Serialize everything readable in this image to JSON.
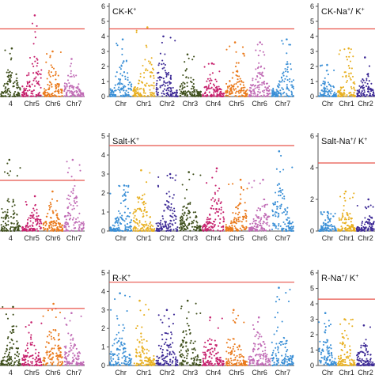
{
  "colors": {
    "chr_cycle": [
      "#3a8fd6",
      "#e8b022",
      "#3d2a96",
      "#3f4f1c",
      "#c7226e",
      "#ea7a1c",
      "#c16db6"
    ],
    "threshold": "#e8534a",
    "axis": "#555555"
  },
  "chart_data": [
    {
      "id": "left-top",
      "type": "scatter",
      "title": "",
      "chromosomes": [
        "4",
        "Chr5",
        "Chr6",
        "Chr7"
      ],
      "threshold": 4.5,
      "ylim": [
        0,
        6
      ],
      "peaks": [
        3.2,
        5.4,
        3.0,
        2.5
      ],
      "ytick_values": []
    },
    {
      "id": "middle-top",
      "type": "scatter",
      "title": "CK-K",
      "title_superscript": "+",
      "chromosomes": [
        "Chr",
        "Chr1",
        "Chr2",
        "Chr3",
        "Chr4",
        "Chr5",
        "Chr6",
        "Chr7"
      ],
      "threshold": 4.5,
      "ylim": [
        0,
        6
      ],
      "peaks": [
        3.8,
        4.6,
        4.0,
        2.8,
        2.2,
        3.6,
        3.6,
        3.8
      ],
      "ytick_values": [
        "0",
        "1",
        "2",
        "3",
        "4",
        "5",
        "6"
      ]
    },
    {
      "id": "right-top",
      "type": "scatter",
      "title": "CK-Na",
      "title_superscript": "+",
      "title_suffix": "/ K",
      "title_suffix_superscript": "+",
      "chromosomes": [
        "Chr",
        "Chr1",
        "Chr2"
      ],
      "threshold": 4.5,
      "ylim": [
        0,
        6
      ],
      "peaks": [
        2.1,
        3.2,
        2.6
      ],
      "ytick_values": [
        "0",
        "1",
        "2",
        "3",
        "4",
        "5",
        "6"
      ]
    },
    {
      "id": "left-middle",
      "type": "scatter",
      "title": "",
      "chromosomes": [
        "4",
        "Chr5",
        "Chr6",
        "Chr7"
      ],
      "threshold": 3.2,
      "ylim": [
        0,
        6
      ],
      "peaks": [
        4.5,
        2.2,
        2.5,
        4.5
      ],
      "ytick_values": []
    },
    {
      "id": "middle-middle",
      "type": "scatter",
      "title": "Salt-K",
      "title_superscript": "+",
      "chromosomes": [
        "Chr",
        "Chr1",
        "Chr2",
        "Chr3",
        "Chr4",
        "Chr5",
        "Chr6",
        "Chr7"
      ],
      "threshold": 4.5,
      "ylim": [
        0,
        5
      ],
      "peaks": [
        2.4,
        3.2,
        3.0,
        3.1,
        3.3,
        2.7,
        2.7,
        4.2
      ],
      "ytick_values": [
        "0",
        "1",
        "2",
        "3",
        "4",
        "5"
      ]
    },
    {
      "id": "right-middle",
      "type": "scatter",
      "title": "Salt-Na",
      "title_superscript": "+",
      "title_suffix": "/ K",
      "title_suffix_superscript": "+",
      "chromosomes": [
        "Chr",
        "Chr1",
        "Chr2"
      ],
      "threshold": 4.3,
      "ylim": [
        0,
        6
      ],
      "peaks": [
        1.2,
        2.5,
        2.0
      ],
      "ytick_values": [
        "0",
        "2",
        "4",
        "6"
      ]
    },
    {
      "id": "left-bottom",
      "type": "scatter",
      "title": "",
      "chromosomes": [
        "4",
        "Chr5",
        "Chr6",
        "Chr7"
      ],
      "threshold": 3.7,
      "ylim": [
        0,
        6
      ],
      "peaks": [
        3.8,
        2.8,
        4.0,
        3.4
      ],
      "ytick_values": []
    },
    {
      "id": "middle-bottom",
      "type": "scatter",
      "title": "R-K",
      "title_superscript": "+",
      "chromosomes": [
        "Chr",
        "Chr1",
        "Chr2",
        "Chr3",
        "Chr4",
        "Chr5",
        "Chr6",
        "Chr7"
      ],
      "threshold": 4.5,
      "ylim": [
        0,
        5
      ],
      "peaks": [
        3.9,
        3.5,
        3.0,
        3.5,
        2.6,
        3.0,
        2.6,
        4.2
      ],
      "ytick_values": [
        "0",
        "1",
        "2",
        "3",
        "4",
        "5"
      ]
    },
    {
      "id": "right-bottom",
      "type": "scatter",
      "title": "R-Na",
      "title_superscript": "+",
      "title_suffix": "/ K",
      "title_suffix_superscript": "+",
      "chromosomes": [
        "Chr",
        "Chr1",
        "Chr2"
      ],
      "threshold": 4.3,
      "ylim": [
        0,
        6
      ],
      "peaks": [
        3.4,
        3.0,
        2.6
      ],
      "ytick_values": [
        "0",
        "1",
        "2",
        "3",
        "4",
        "5",
        "6"
      ]
    }
  ]
}
